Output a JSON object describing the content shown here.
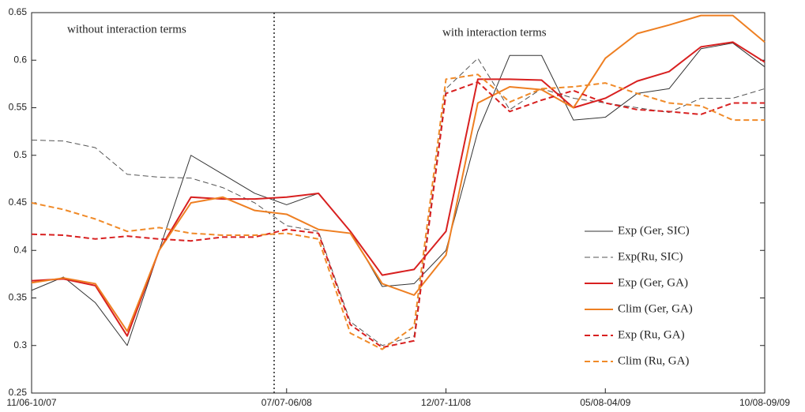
{
  "chart_data": {
    "type": "line",
    "annotations": [
      "without interaction terms",
      "with interaction terms"
    ],
    "categories": [
      "11/06-10/07",
      null,
      null,
      null,
      null,
      null,
      null,
      null,
      "07/07-06/08",
      null,
      null,
      null,
      null,
      "12/07-11/08",
      null,
      null,
      null,
      null,
      "05/08-04/09",
      null,
      null,
      null,
      null,
      "10/08-09/09"
    ],
    "ylim": [
      0.25,
      0.65
    ],
    "yticks": [
      0.25,
      0.3,
      0.35,
      0.4,
      0.45,
      0.5,
      0.55,
      0.6,
      0.65
    ],
    "legend": "lower right",
    "series": [
      {
        "name": "Exp (Ger, SIC)",
        "color": "#333333",
        "dashed": false,
        "width": 1,
        "values": [
          0.358,
          0.372,
          0.345,
          0.3,
          0.4,
          0.5,
          0.48,
          0.46,
          0.448,
          0.46,
          0.42,
          0.362,
          0.365,
          0.4,
          0.525,
          0.605,
          0.605,
          0.537,
          0.54,
          0.565,
          0.57,
          0.612,
          0.618,
          0.593
        ]
      },
      {
        "name": "Exp(Ru, SIC)",
        "color": "#555555",
        "dashed": true,
        "width": 1,
        "values": [
          0.516,
          0.515,
          0.508,
          0.48,
          0.477,
          0.476,
          0.466,
          0.45,
          0.426,
          0.42,
          0.325,
          0.3,
          0.31,
          0.57,
          0.602,
          0.548,
          0.57,
          0.56,
          0.555,
          0.55,
          0.545,
          0.56,
          0.56,
          0.57
        ]
      },
      {
        "name": "Exp (Ger, GA)",
        "color": "#d82020",
        "dashed": false,
        "width": 2,
        "values": [
          0.368,
          0.37,
          0.363,
          0.31,
          0.4,
          0.456,
          0.454,
          0.454,
          0.456,
          0.46,
          0.42,
          0.374,
          0.38,
          0.42,
          0.58,
          0.58,
          0.579,
          0.55,
          0.56,
          0.578,
          0.588,
          0.614,
          0.619,
          0.598
        ]
      },
      {
        "name": "Clim (Ger, GA)",
        "color": "#ee7f22",
        "dashed": false,
        "width": 2,
        "values": [
          0.366,
          0.371,
          0.365,
          0.315,
          0.4,
          0.45,
          0.456,
          0.442,
          0.438,
          0.422,
          0.418,
          0.365,
          0.353,
          0.395,
          0.555,
          0.572,
          0.569,
          0.55,
          0.602,
          0.628,
          0.637,
          0.647,
          0.647,
          0.619
        ]
      },
      {
        "name": "Exp (Ru, GA)",
        "color": "#d82020",
        "dashed": true,
        "width": 2,
        "values": [
          0.417,
          0.416,
          0.412,
          0.415,
          0.412,
          0.41,
          0.414,
          0.414,
          0.422,
          0.418,
          0.322,
          0.298,
          0.305,
          0.565,
          0.577,
          0.546,
          0.558,
          0.568,
          0.555,
          0.548,
          0.546,
          0.543,
          0.555,
          0.555
        ]
      },
      {
        "name": "Clim (Ru, GA)",
        "color": "#f08a28",
        "dashed": true,
        "width": 2,
        "values": [
          0.45,
          0.443,
          0.433,
          0.42,
          0.424,
          0.418,
          0.416,
          0.416,
          0.418,
          0.412,
          0.313,
          0.296,
          0.32,
          0.58,
          0.585,
          0.556,
          0.57,
          0.572,
          0.576,
          0.565,
          0.555,
          0.552,
          0.537,
          0.537
        ]
      }
    ]
  }
}
